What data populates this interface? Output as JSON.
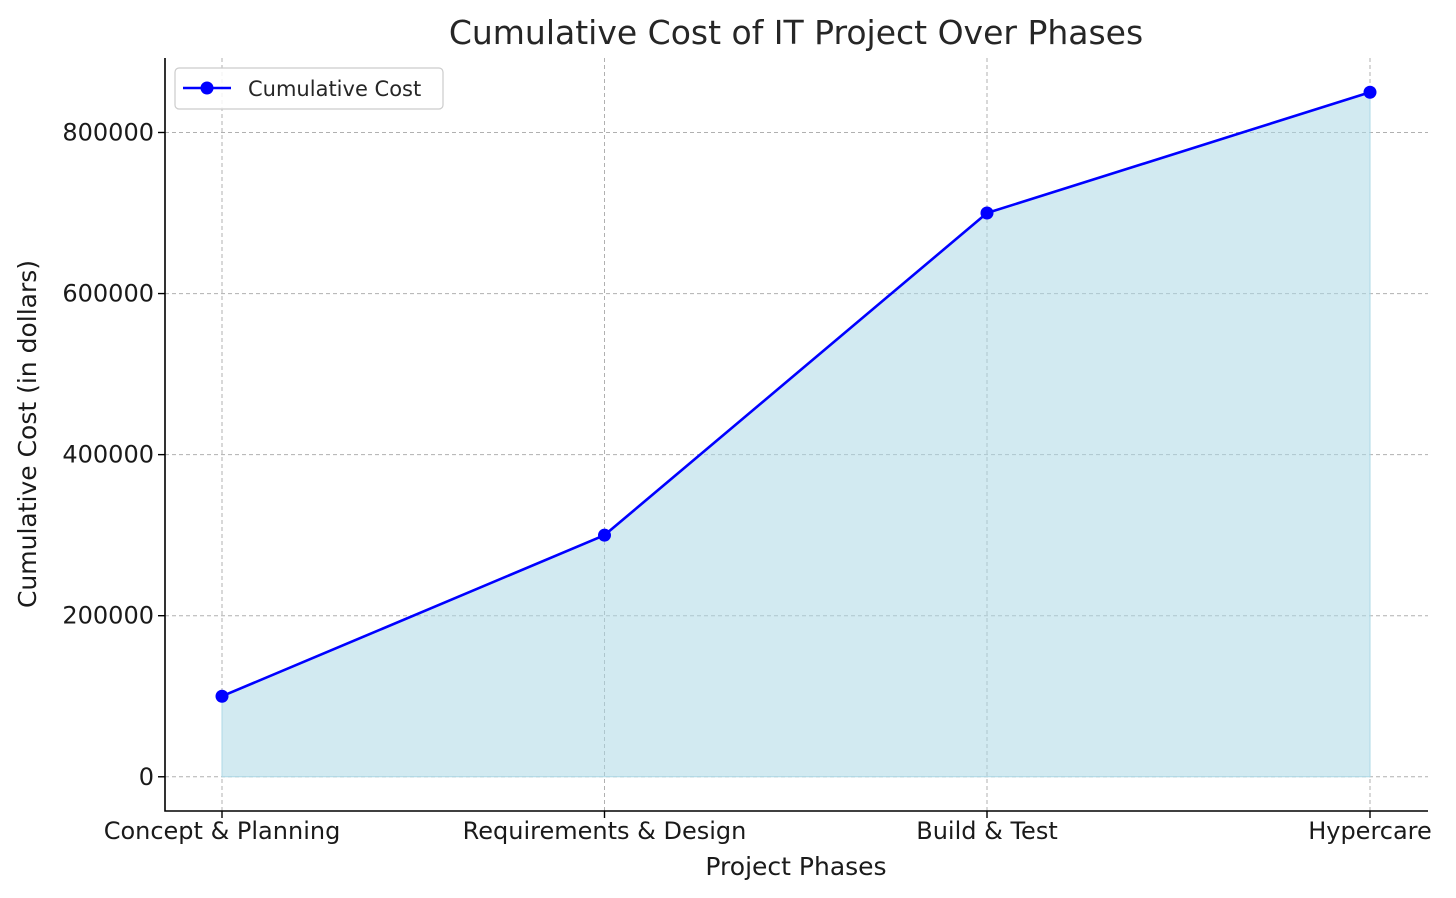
{
  "chart_data": {
    "type": "area",
    "title": "Cumulative Cost of IT Project Over Phases",
    "xlabel": "Project Phases",
    "ylabel": "Cumulative Cost (in dollars)",
    "categories": [
      "Concept & Planning",
      "Requirements & Design",
      "Build & Test",
      "Hypercare"
    ],
    "series": [
      {
        "name": "Cumulative Cost",
        "values": [
          100000,
          300000,
          700000,
          850000
        ]
      }
    ],
    "ylim": [
      -42500,
      892500
    ],
    "yticks": [
      0,
      200000,
      400000,
      600000,
      800000
    ],
    "ytick_labels": [
      "0",
      "200000",
      "400000",
      "600000",
      "800000"
    ],
    "grid": true,
    "legend_position": "top-left",
    "colors": {
      "line": "#0000ff",
      "fill": "#add8e6",
      "grid": "#b0b0b0"
    }
  }
}
